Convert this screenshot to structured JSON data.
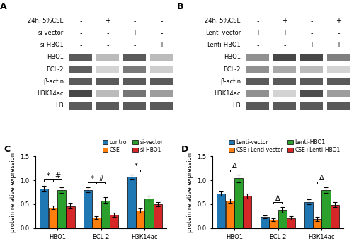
{
  "chart_data": [
    {
      "type": "blot",
      "title": "A",
      "treatment_rows": [
        {
          "name": "24h, 5%CSE",
          "values": [
            "-",
            "+",
            "-",
            "-"
          ]
        },
        {
          "name": "si-vector",
          "values": [
            "-",
            "-",
            "+",
            "-"
          ]
        },
        {
          "name": "si-HBO1",
          "values": [
            "-",
            "-",
            "-",
            "+"
          ]
        }
      ],
      "series": [
        {
          "name": "HBO1",
          "values": [
            0.72,
            0.38,
            0.72,
            0.38
          ]
        },
        {
          "name": "BCL-2",
          "values": [
            0.7,
            0.28,
            0.6,
            0.3
          ]
        },
        {
          "name": "β-actin",
          "values": [
            0.72,
            0.72,
            0.72,
            0.72
          ]
        },
        {
          "name": "H3K14ac",
          "values": [
            0.78,
            0.38,
            0.62,
            0.48
          ]
        },
        {
          "name": "H3",
          "values": [
            0.72,
            0.72,
            0.72,
            0.72
          ]
        }
      ]
    },
    {
      "type": "blot",
      "title": "B",
      "treatment_rows": [
        {
          "name": "24h, 5%CSE",
          "values": [
            "-",
            "+",
            "-",
            "+"
          ]
        },
        {
          "name": "Lenti-vector",
          "values": [
            "+",
            "+",
            "-",
            "-"
          ]
        },
        {
          "name": "Lenti-HBO1",
          "values": [
            "-",
            "-",
            "+",
            "+"
          ]
        }
      ],
      "series": [
        {
          "name": "HBO1",
          "values": [
            0.52,
            0.78,
            0.78,
            0.58
          ]
        },
        {
          "name": "BCL-2",
          "values": [
            0.52,
            0.44,
            0.38,
            0.28
          ]
        },
        {
          "name": "β-actin",
          "values": [
            0.72,
            0.72,
            0.72,
            0.72
          ]
        },
        {
          "name": "H3K14ac",
          "values": [
            0.52,
            0.28,
            0.76,
            0.48
          ]
        },
        {
          "name": "H3",
          "values": [
            0.72,
            0.72,
            0.72,
            0.72
          ]
        }
      ]
    },
    {
      "type": "bar",
      "title": "C",
      "categories": [
        "HBO1",
        "BCL-2",
        "H3K14ac"
      ],
      "series": [
        {
          "name": "control",
          "values": [
            0.83,
            0.8,
            1.07
          ],
          "errors": [
            0.06,
            0.05,
            0.05
          ]
        },
        {
          "name": "CSE",
          "values": [
            0.43,
            0.22,
            0.37
          ],
          "errors": [
            0.04,
            0.03,
            0.04
          ]
        },
        {
          "name": "si-vector",
          "values": [
            0.8,
            0.58,
            0.62
          ],
          "errors": [
            0.06,
            0.06,
            0.05
          ]
        },
        {
          "name": "si-HBO1",
          "values": [
            0.46,
            0.28,
            0.5
          ],
          "errors": [
            0.05,
            0.04,
            0.05
          ]
        }
      ],
      "ylabel": "protein relative expression",
      "ylim": [
        0,
        1.5
      ],
      "yticks": [
        0.0,
        0.5,
        1.0,
        1.5
      ],
      "annotations": [
        {
          "category": "HBO1",
          "between": [
            "control",
            "CSE"
          ],
          "label": "*",
          "y": 1.02
        },
        {
          "category": "HBO1",
          "between": [
            "CSE",
            "si-vector"
          ],
          "label": "#",
          "y": 1.02
        },
        {
          "category": "BCL-2",
          "between": [
            "control",
            "CSE"
          ],
          "label": "*",
          "y": 0.95
        },
        {
          "category": "BCL-2",
          "between": [
            "CSE",
            "si-vector"
          ],
          "label": "#",
          "y": 0.95
        },
        {
          "category": "H3K14ac",
          "between": [
            "control",
            "CSE"
          ],
          "label": "*",
          "y": 1.22
        }
      ]
    },
    {
      "type": "bar",
      "title": "D",
      "categories": [
        "HBO1",
        "BCL-2",
        "H3K14ac"
      ],
      "series": [
        {
          "name": "Lenti-vector",
          "values": [
            0.72,
            0.23,
            0.55
          ],
          "errors": [
            0.04,
            0.03,
            0.05
          ]
        },
        {
          "name": "CSE+Lenti-vector",
          "values": [
            0.57,
            0.17,
            0.19
          ],
          "errors": [
            0.05,
            0.03,
            0.04
          ]
        },
        {
          "name": "Lenti-HBO1",
          "values": [
            1.04,
            0.38,
            0.79
          ],
          "errors": [
            0.08,
            0.06,
            0.06
          ]
        },
        {
          "name": "CSE+Lenti-HBO1",
          "values": [
            0.67,
            0.21,
            0.49
          ],
          "errors": [
            0.05,
            0.04,
            0.05
          ]
        }
      ],
      "ylabel": "protein relative expression",
      "ylim": [
        0,
        1.5
      ],
      "yticks": [
        0.0,
        0.5,
        1.0,
        1.5
      ],
      "annotations": [
        {
          "category": "HBO1",
          "between": [
            "CSE+Lenti-vector",
            "Lenti-HBO1"
          ],
          "label": "Δ",
          "y": 1.22
        },
        {
          "category": "BCL-2",
          "between": [
            "CSE+Lenti-vector",
            "Lenti-HBO1"
          ],
          "label": "Δ",
          "y": 0.55
        },
        {
          "category": "H3K14ac",
          "between": [
            "CSE+Lenti-vector",
            "Lenti-HBO1"
          ],
          "label": "Δ",
          "y": 0.97
        }
      ]
    }
  ]
}
